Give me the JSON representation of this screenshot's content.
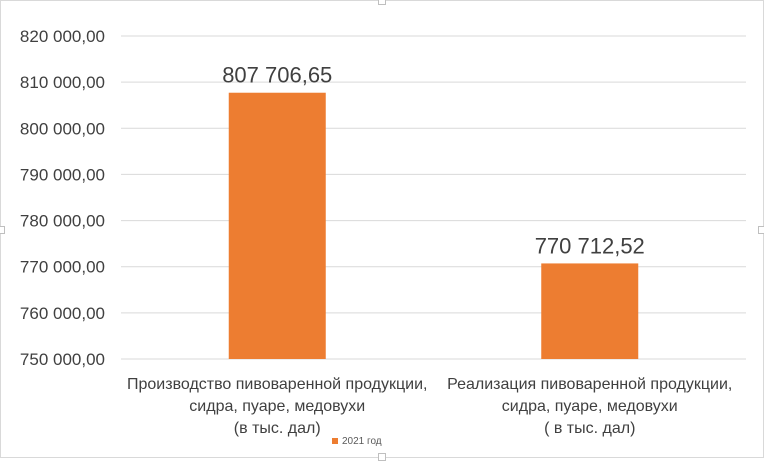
{
  "chart_data": {
    "type": "bar",
    "title": "",
    "xlabel": "",
    "ylabel": "",
    "categories": [
      [
        "Производство пивоваренной продукции,",
        "сидра, пуаре, медовухи",
        "(в тыс. дал)"
      ],
      [
        "Реализация пивоваренной продукции,",
        "сидра, пуаре, медовухи",
        "( в тыс. дал)"
      ]
    ],
    "series": [
      {
        "name": "2021 год",
        "color": "#ED7D31",
        "values": [
          807706.65,
          770712.52
        ],
        "value_labels": [
          "807 706,65",
          "770 712,52"
        ]
      }
    ],
    "ylim": [
      750000,
      820000
    ],
    "y_ticks": [
      750000,
      760000,
      770000,
      780000,
      790000,
      800000,
      810000,
      820000
    ],
    "y_tick_labels": [
      "750 000,00",
      "760 000,00",
      "770 000,00",
      "780 000,00",
      "790 000,00",
      "800 000,00",
      "810 000,00",
      "820 000,00"
    ],
    "grid": true,
    "legend_position": "bottom"
  }
}
